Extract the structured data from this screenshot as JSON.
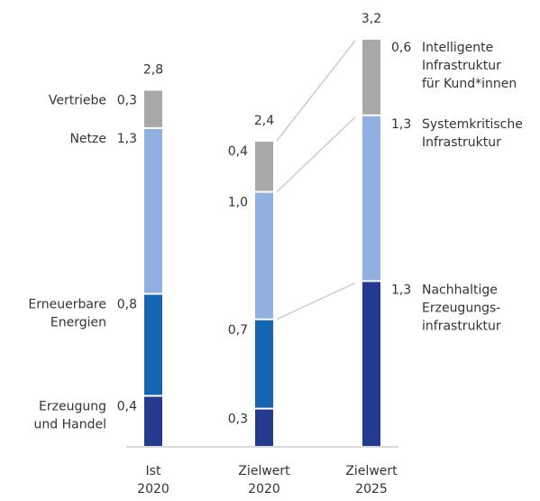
{
  "chart_data": {
    "type": "stacked_bar",
    "categories": [
      [
        "Ist",
        "2020"
      ],
      [
        "Zielwert",
        "2020"
      ],
      [
        "Zielwert",
        "2025"
      ]
    ],
    "series": [
      {
        "name": [
          "Erzeugung",
          "und Handel"
        ],
        "name_2025": [
          "Nachhaltige",
          "Erzeugungs-",
          "infrastruktur"
        ],
        "color": "#243a8f",
        "values": [
          0.4,
          0.3,
          1.3
        ],
        "value_labels": [
          "0,4",
          "0,3",
          "1,3"
        ]
      },
      {
        "name": [
          "Erneuerbare",
          "Energien"
        ],
        "color": "#1565b0",
        "values": [
          0.8,
          0.7,
          null
        ],
        "value_labels": [
          "0,8",
          "0,7",
          null
        ]
      },
      {
        "name": [
          "Netze"
        ],
        "name_2025": [
          "Systemkritische",
          "Infrastruktur"
        ],
        "color": "#8fb0e0",
        "values": [
          1.3,
          1.0,
          1.3
        ],
        "value_labels": [
          "1,3",
          "1,0",
          "1,3"
        ]
      },
      {
        "name": [
          "Vertriebe"
        ],
        "name_2025": [
          "Intelligente",
          "Infrastruktur",
          "für Kund*innen"
        ],
        "color": "#a8a8a8",
        "values": [
          0.3,
          0.4,
          0.6
        ],
        "value_labels": [
          "0,3",
          "0,4",
          "0,6"
        ]
      }
    ],
    "totals": [
      2.8,
      2.4,
      3.2
    ],
    "total_labels": [
      "2,8",
      "2,4",
      "3,2"
    ],
    "ylim": [
      0,
      3.2
    ]
  }
}
